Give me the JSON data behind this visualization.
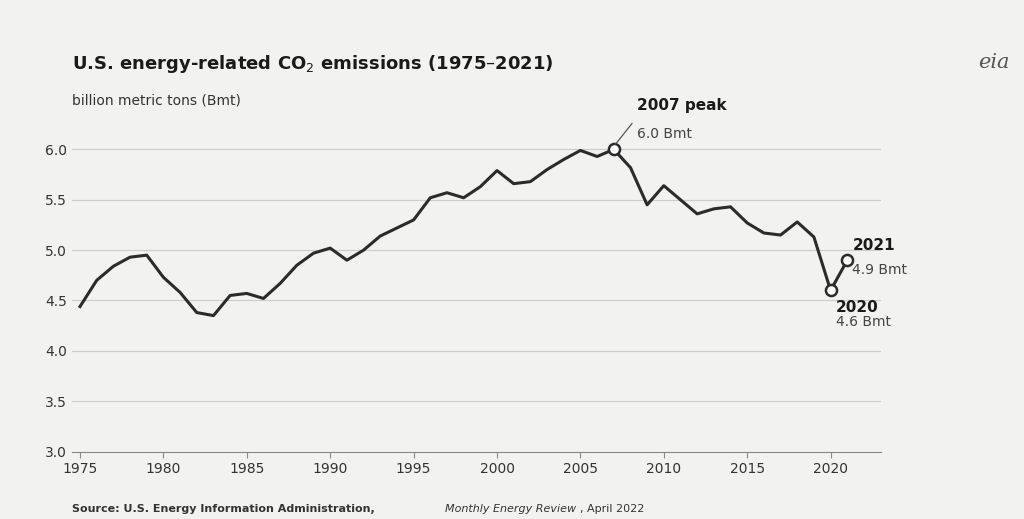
{
  "title": "U.S. energy-related CO$_2$ emissions (1975–2021)",
  "subtitle": "billion metric tons (Bmt)",
  "years": [
    1975,
    1976,
    1977,
    1978,
    1979,
    1980,
    1981,
    1982,
    1983,
    1984,
    1985,
    1986,
    1987,
    1988,
    1989,
    1990,
    1991,
    1992,
    1993,
    1994,
    1995,
    1996,
    1997,
    1998,
    1999,
    2000,
    2001,
    2002,
    2003,
    2004,
    2005,
    2006,
    2007,
    2008,
    2009,
    2010,
    2011,
    2012,
    2013,
    2014,
    2015,
    2016,
    2017,
    2018,
    2019,
    2020,
    2021
  ],
  "values": [
    4.44,
    4.7,
    4.84,
    4.93,
    4.95,
    4.73,
    4.58,
    4.38,
    4.35,
    4.55,
    4.57,
    4.52,
    4.67,
    4.85,
    4.97,
    5.02,
    4.9,
    5.0,
    5.14,
    5.22,
    5.3,
    5.52,
    5.57,
    5.52,
    5.63,
    5.79,
    5.66,
    5.68,
    5.8,
    5.9,
    5.99,
    5.93,
    6.0,
    5.82,
    5.45,
    5.64,
    5.5,
    5.36,
    5.41,
    5.43,
    5.27,
    5.17,
    5.15,
    5.28,
    5.13,
    4.6,
    4.9
  ],
  "ylim": [
    3.0,
    6.35
  ],
  "yticks": [
    3.0,
    3.5,
    4.0,
    4.5,
    5.0,
    5.5,
    6.0
  ],
  "xlim": [
    1974.5,
    2023
  ],
  "xticks": [
    1975,
    1980,
    1985,
    1990,
    1995,
    2000,
    2005,
    2010,
    2015,
    2020
  ],
  "line_color": "#2b2b2b",
  "line_width": 2.2,
  "background_color": "#f2f2f0",
  "grid_color": "#cccccc",
  "annotation_peak_year": 2007,
  "annotation_peak_value": 6.0,
  "annotation_peak_label1": "2007 peak",
  "annotation_peak_label2": "6.0 Bmt",
  "annotation_2020_year": 2020,
  "annotation_2020_value": 4.6,
  "annotation_2020_label1": "2020",
  "annotation_2020_label2": "4.6 Bmt",
  "annotation_2021_year": 2021,
  "annotation_2021_value": 4.9,
  "annotation_2021_label1": "2021",
  "annotation_2021_label2": "4.9 Bmt",
  "marker_color": "white",
  "marker_edge_color": "#2b2b2b",
  "marker_size": 8,
  "source_bold": "Source: U.S. Energy Information Administration, ",
  "source_italic": "Monthly Energy Review",
  "source_normal": ", April 2022"
}
